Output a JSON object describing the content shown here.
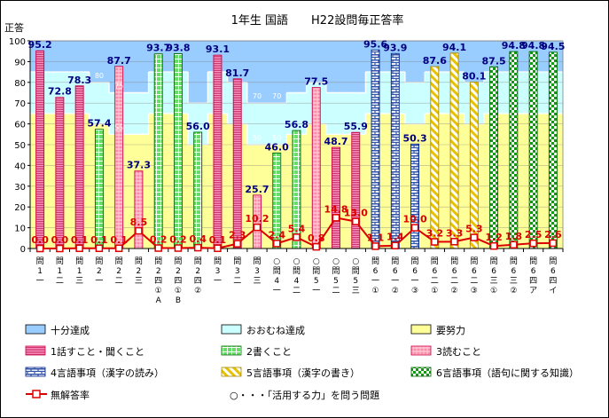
{
  "chart_data": {
    "type": "bar",
    "title": "1年生 国語　　H22設問毎正答率",
    "ylabel": "正答",
    "ylim": [
      0,
      100
    ],
    "yticks": [
      0,
      10,
      20,
      30,
      40,
      50,
      60,
      70,
      80,
      90,
      100
    ],
    "categories": [
      [
        "問",
        "1",
        "一"
      ],
      [
        "問",
        "1",
        "二"
      ],
      [
        "問",
        "1",
        "三"
      ],
      [
        "問",
        "2",
        "一"
      ],
      [
        "問",
        "2",
        "二"
      ],
      [
        "問",
        "2",
        "三"
      ],
      [
        "問",
        "2",
        "四",
        "①",
        "A"
      ],
      [
        "問",
        "2",
        "四",
        "①",
        "B"
      ],
      [
        "問",
        "2",
        "四",
        "②"
      ],
      [
        "問",
        "3",
        "一"
      ],
      [
        "問",
        "3",
        "二"
      ],
      [
        "問",
        "3",
        "三"
      ],
      [
        "○",
        "問",
        "4",
        "一"
      ],
      [
        "○",
        "問",
        "4",
        "二"
      ],
      [
        "○",
        "問",
        "5",
        "一"
      ],
      [
        "○",
        "問",
        "5",
        "二"
      ],
      [
        "○",
        "問",
        "5",
        "三"
      ],
      [
        "問",
        "6",
        "一",
        "①"
      ],
      [
        "問",
        "6",
        "一",
        "②"
      ],
      [
        "問",
        "6",
        "一",
        "③"
      ],
      [
        "問",
        "6",
        "二",
        "①"
      ],
      [
        "問",
        "6",
        "二",
        "②"
      ],
      [
        "問",
        "6",
        "二",
        "③"
      ],
      [
        "問",
        "6",
        "三",
        "①"
      ],
      [
        "問",
        "6",
        "三",
        "②"
      ],
      [
        "問",
        "6",
        "四",
        "ア"
      ],
      [
        "問",
        "6",
        "四",
        "イ"
      ]
    ],
    "bar_values": [
      95.2,
      72.8,
      78.3,
      57.4,
      87.7,
      37.3,
      93.7,
      93.8,
      56.0,
      93.1,
      81.7,
      25.7,
      46.0,
      56.8,
      77.5,
      48.7,
      55.9,
      95.6,
      93.9,
      50.3,
      87.6,
      94.1,
      80.1,
      87.5,
      94.8,
      94.8,
      94.5
    ],
    "bar_labels": [
      "95.2",
      "72.8",
      "78.3",
      "57.4",
      "87.7",
      "37.3",
      "93.7",
      "93.8",
      "56.0",
      "93.1",
      "81.7",
      "25.7",
      "46.0",
      "56.8",
      "77.5",
      "48.7",
      "55.9",
      "95.6",
      "93.9",
      "50.3",
      "87.6",
      "94.1",
      "80.1",
      "87.5",
      "94.8",
      "94.8",
      "94.5"
    ],
    "bar_groups": [
      1,
      1,
      1,
      2,
      3,
      3,
      2,
      2,
      2,
      1,
      1,
      3,
      2,
      2,
      3,
      1,
      1,
      4,
      4,
      4,
      5,
      5,
      5,
      6,
      6,
      6,
      6
    ],
    "no_answer_values": [
      0.0,
      0.0,
      0.1,
      0.1,
      0.1,
      8.5,
      0.2,
      0.2,
      0.4,
      0.1,
      2.3,
      10.2,
      2.4,
      5.4,
      0.8,
      14.8,
      13.0,
      1.1,
      1.4,
      10.0,
      3.2,
      3.3,
      5.3,
      1.2,
      1.8,
      2.5,
      2.6
    ],
    "no_answer_labels": [
      "0.0",
      "0.0",
      "0.1",
      "0.1",
      "0.1",
      "8.5",
      "0.2",
      "0.2",
      "0.4",
      "0.1",
      "2.3",
      "10.2",
      "2.4",
      "5.4",
      "0.8",
      "14.8",
      "13.0",
      "1.1",
      "1.4",
      "10.0",
      "3.2",
      "3.3",
      "5.3",
      "1.2",
      "1.8",
      "2.5",
      "2.6"
    ],
    "criteria": {
      "full": [
        85,
        85,
        85,
        80,
        75,
        75,
        85,
        85,
        70,
        85,
        80,
        70,
        70,
        75,
        80,
        75,
        75,
        85,
        85,
        80,
        85,
        85,
        80,
        85,
        85,
        85,
        85
      ],
      "mostly": [
        65,
        65,
        65,
        60,
        55,
        55,
        65,
        65,
        50,
        65,
        60,
        50,
        50,
        55,
        60,
        55,
        55,
        65,
        65,
        60,
        65,
        65,
        60,
        65,
        65,
        65,
        65
      ],
      "full_labels": [
        "",
        "",
        "",
        "80",
        "75",
        "",
        "",
        "",
        "",
        "",
        "",
        "70",
        "70",
        "",
        "",
        "",
        "",
        "",
        "",
        "",
        "",
        "",
        "",
        "",
        "",
        "",
        ""
      ],
      "mostly_labels": [
        "",
        "",
        "",
        "",
        "55",
        "",
        "",
        "",
        "",
        "",
        "",
        "50",
        "50",
        "",
        "",
        "",
        "",
        "",
        "",
        "",
        "",
        "",
        "",
        "",
        "",
        "",
        ""
      ]
    },
    "colors": {
      "full": "#99ccff",
      "mostly": "#ccffff",
      "effort": "#ffff99",
      "group1_fill": "#ff99cc",
      "group2_fill": "#66dd66",
      "group3_fill": "#ff99aa",
      "group4_fill": "#ddeeff",
      "group5_fill": "#ffee88",
      "group6_fill": "#33aa33",
      "line": "#dd0000",
      "bar_label": "#000080"
    },
    "legend": [
      "十分達成",
      "おおむね達成",
      "要努力",
      "1話すこと・聞くこと",
      "2書くこと",
      "3読むこと",
      "4言語事項（漢字の読み）",
      "5言語事項（漢字の書き）",
      "6言語事項（語句に関する知識）",
      "無解答率",
      "○・・・「活用する力」を問う問題"
    ]
  }
}
